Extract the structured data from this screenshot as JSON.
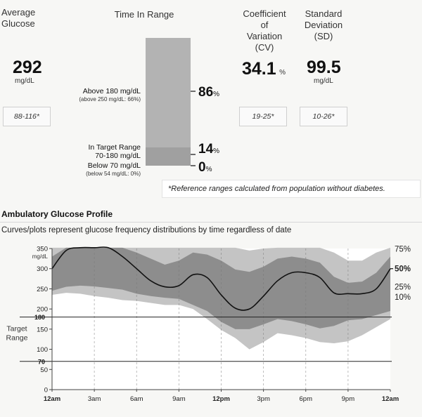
{
  "summary": {
    "avg_glucose": {
      "header": [
        "Average",
        "Glucose"
      ],
      "value": "292",
      "unit": "mg/dL",
      "reference": "88-116*"
    },
    "time_in_range": {
      "header": "Time In Range",
      "above": {
        "label": "Above 180 mg/dL",
        "sub": "(above 250 mg/dL: 66%)",
        "value": 86,
        "pct": "86"
      },
      "target": {
        "label": "In Target Range",
        "sub": "70-180 mg/dL",
        "value": 14,
        "pct": "14"
      },
      "below": {
        "label": "Below 70 mg/dL",
        "sub": "(below 54 mg/dL: 0%)",
        "value": 0,
        "pct": "0"
      },
      "pct_sign": "%"
    },
    "cv": {
      "header": [
        "Coefficient",
        "of",
        "Variation",
        "(CV)"
      ],
      "value": "34.1",
      "unit": "%",
      "reference": "19-25*"
    },
    "sd": {
      "header": [
        "Standard",
        "Deviation",
        "(SD)"
      ],
      "value": "99.5",
      "unit": "mg/dL",
      "reference": "10-26*"
    },
    "footnote": "*Reference ranges calculated from population without diabetes."
  },
  "section": {
    "title": "Ambulatory Glucose Profile",
    "subtitle": "Curves/plots represent glucose frequency distributions by time regardless of date"
  },
  "chart_data": {
    "type": "area",
    "title": "Ambulatory Glucose Profile",
    "ylabel": "mg/dL",
    "ylim": [
      0,
      350
    ],
    "yticks": [
      0,
      50,
      100,
      150,
      200,
      250,
      300,
      350
    ],
    "target_range": {
      "label": [
        "Target",
        "Range"
      ],
      "low": 70,
      "high": 180,
      "low_label": "70",
      "high_label": "180"
    },
    "xlabels": [
      "12am",
      "3am",
      "6am",
      "9am",
      "12pm",
      "3pm",
      "6pm",
      "9pm",
      "12am"
    ],
    "x": [
      0,
      1,
      2,
      3,
      4,
      5,
      6,
      7,
      8,
      9,
      10,
      11,
      12,
      13,
      14,
      15,
      16,
      17,
      18,
      19,
      20,
      21,
      22,
      23,
      24
    ],
    "percentiles": {
      "p5": [
        235,
        240,
        238,
        232,
        228,
        222,
        220,
        215,
        210,
        210,
        200,
        175,
        148,
        128,
        100,
        118,
        140,
        135,
        128,
        118,
        115,
        120,
        135,
        155,
        175
      ],
      "p25": [
        245,
        255,
        258,
        256,
        252,
        248,
        238,
        232,
        228,
        225,
        210,
        195,
        168,
        150,
        150,
        162,
        175,
        170,
        162,
        152,
        158,
        172,
        175,
        185,
        195
      ],
      "p50": [
        300,
        345,
        352,
        352,
        352,
        330,
        300,
        270,
        255,
        258,
        285,
        278,
        235,
        202,
        200,
        232,
        270,
        290,
        290,
        278,
        240,
        238,
        238,
        250,
        300
      ],
      "p75": [
        330,
        352,
        352,
        352,
        352,
        352,
        340,
        325,
        310,
        320,
        340,
        335,
        320,
        298,
        292,
        305,
        325,
        330,
        325,
        315,
        280,
        265,
        268,
        290,
        330
      ],
      "p95": [
        352,
        352,
        352,
        352,
        352,
        352,
        352,
        352,
        352,
        352,
        352,
        352,
        352,
        352,
        345,
        350,
        352,
        352,
        352,
        352,
        340,
        320,
        320,
        340,
        352
      ]
    },
    "series_labels": [
      {
        "name": "75%",
        "bold": false
      },
      {
        "name": "50%",
        "bold": true
      },
      {
        "name": "25%",
        "bold": false
      },
      {
        "name": "10%",
        "bold": false
      }
    ],
    "colors": {
      "outer_band": "#c4c4c4",
      "inner_band": "#8d8d8d",
      "median": "#111111",
      "grid": "#9a9a9a"
    }
  }
}
